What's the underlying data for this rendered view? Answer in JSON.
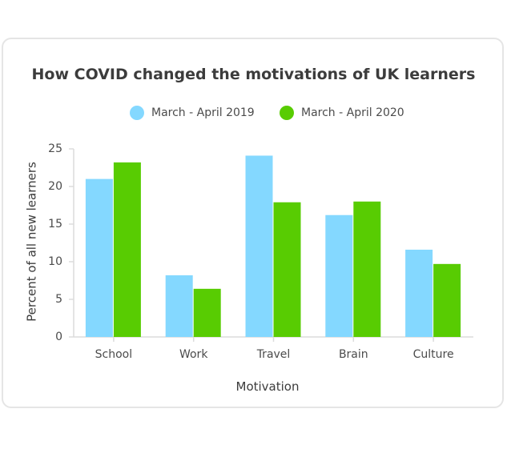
{
  "chart_data": {
    "type": "bar",
    "title": "How COVID changed the motivations of UK learners",
    "xlabel": "Motivation",
    "ylabel": "Percent of all new learners",
    "categories": [
      "School",
      "Work",
      "Travel",
      "Brain",
      "Culture"
    ],
    "series": [
      {
        "name": "March - April 2019",
        "color": "#84d8ff",
        "values": [
          21,
          8.2,
          24.1,
          16.2,
          11.6
        ]
      },
      {
        "name": "March - April 2020",
        "color": "#58cc02",
        "values": [
          23.2,
          6.4,
          17.9,
          18,
          9.7
        ]
      }
    ],
    "ylim": [
      0,
      25
    ],
    "yticks": [
      0,
      5,
      10,
      15,
      20,
      25
    ],
    "legend_position": "top",
    "grid": false
  }
}
